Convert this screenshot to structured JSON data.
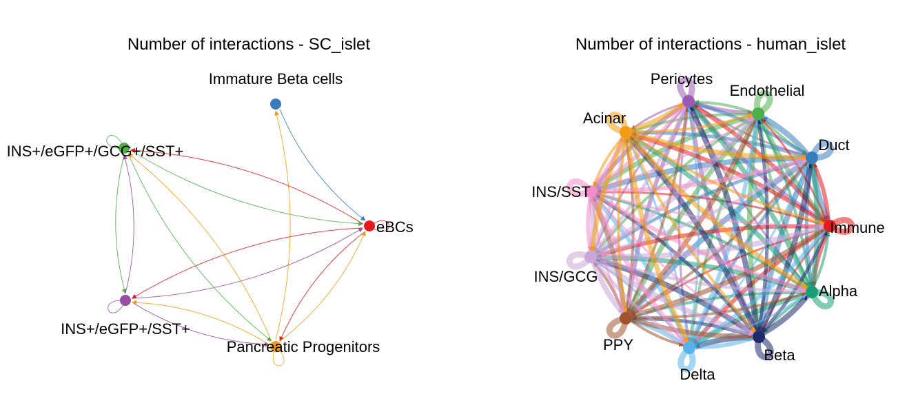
{
  "panels": [
    {
      "id": "sc",
      "title": "Number of interactions - SC_islet",
      "nodes": [
        {
          "id": "ibc",
          "label": "Immature Beta cells",
          "color": "#3a7dbd"
        },
        {
          "id": "ebc",
          "label": "eBCs",
          "color": "#e41a1c"
        },
        {
          "id": "pp",
          "label": "Pancreatic Progenitors",
          "color": "#f39c12"
        },
        {
          "id": "ies",
          "label": "INS+/eGFP+/SST+",
          "color": "#984ea3"
        },
        {
          "id": "iegs",
          "label": "INS+/eGFP+/GCG+/SST+",
          "color": "#4daf4a"
        }
      ],
      "edges": [
        {
          "from": "ibc",
          "to": "ebc"
        },
        {
          "from": "pp",
          "to": "ibc"
        },
        {
          "from": "iegs",
          "to": "ebc"
        },
        {
          "from": "ebc",
          "to": "iegs"
        },
        {
          "from": "ebc",
          "to": "ies"
        },
        {
          "from": "ies",
          "to": "ebc"
        },
        {
          "from": "iegs",
          "to": "ies"
        },
        {
          "from": "ies",
          "to": "iegs"
        },
        {
          "from": "iegs",
          "to": "pp"
        },
        {
          "from": "pp",
          "to": "iegs"
        },
        {
          "from": "ies",
          "to": "pp"
        },
        {
          "from": "pp",
          "to": "ies"
        },
        {
          "from": "ebc",
          "to": "pp"
        },
        {
          "from": "pp",
          "to": "ebc"
        }
      ],
      "loops": [
        "ebc",
        "iegs",
        "ies",
        "pp"
      ]
    },
    {
      "id": "human",
      "title": "Number of interactions - human_islet",
      "nodes": [
        {
          "id": "peri",
          "label": "Pericytes",
          "color": "#9b59b6"
        },
        {
          "id": "endo",
          "label": "Endothelial",
          "color": "#4daf4a"
        },
        {
          "id": "duct",
          "label": "Duct",
          "color": "#3a7dbd"
        },
        {
          "id": "imm",
          "label": "Immune",
          "color": "#e41a1c"
        },
        {
          "id": "alpha",
          "label": "Alpha",
          "color": "#1a9e77"
        },
        {
          "id": "beta",
          "label": "Beta",
          "color": "#1f2a6b"
        },
        {
          "id": "delta",
          "label": "Delta",
          "color": "#56b4e9"
        },
        {
          "id": "ppy",
          "label": "PPY",
          "color": "#a0522d"
        },
        {
          "id": "insg",
          "label": "INS/GCG",
          "color": "#c9a8d8"
        },
        {
          "id": "inss",
          "label": "INS/SST",
          "color": "#f48cc8"
        },
        {
          "id": "acinar",
          "label": "Acinar",
          "color": "#f39c12"
        }
      ],
      "all_pairs": true
    }
  ]
}
